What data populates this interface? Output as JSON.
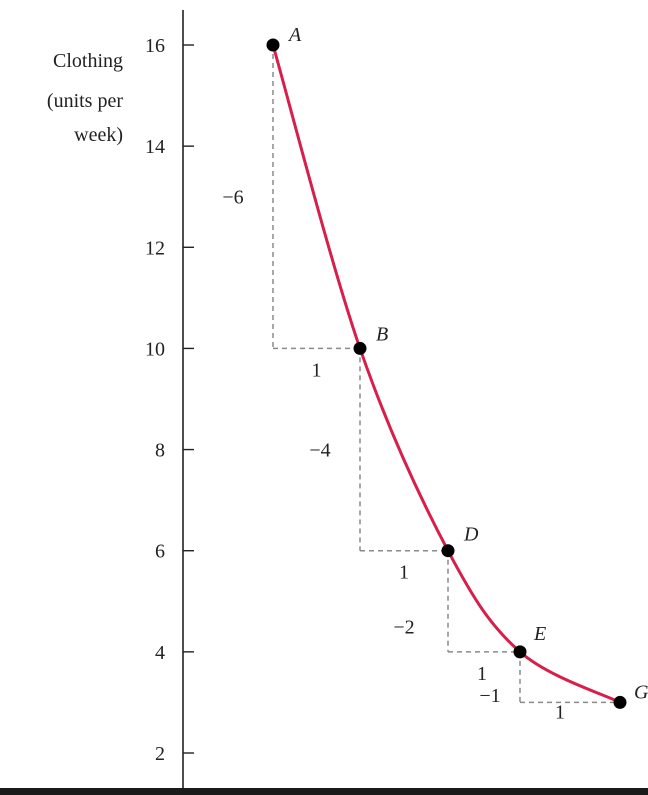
{
  "chart_data": {
    "type": "line",
    "ylabel_lines": [
      "Clothing",
      "(units per",
      "week)"
    ],
    "ylim": [
      1.5,
      17
    ],
    "yticks": [
      2,
      4,
      6,
      8,
      10,
      12,
      14,
      16
    ],
    "series": [
      {
        "points": [
          {
            "x": 1,
            "y": 16,
            "label": "A"
          },
          {
            "x": 2,
            "y": 10,
            "label": "B"
          },
          {
            "x": 3,
            "y": 6,
            "label": "D"
          },
          {
            "x": 4,
            "y": 4,
            "label": "E"
          },
          {
            "x": 5,
            "y": 3,
            "label": "G"
          }
        ]
      }
    ],
    "steps": [
      {
        "from": "A",
        "to": "B",
        "dy_label": "−6",
        "dx_label": "1"
      },
      {
        "from": "B",
        "to": "D",
        "dy_label": "−4",
        "dx_label": "1"
      },
      {
        "from": "D",
        "to": "E",
        "dy_label": "−2",
        "dx_label": "1"
      },
      {
        "from": "E",
        "to": "G",
        "dy_label": "−1",
        "dx_label": "1"
      }
    ],
    "colors": {
      "curve": "#d6204b",
      "points": "#000000",
      "steps": "#8a8a8a",
      "axis": "#222222"
    }
  }
}
